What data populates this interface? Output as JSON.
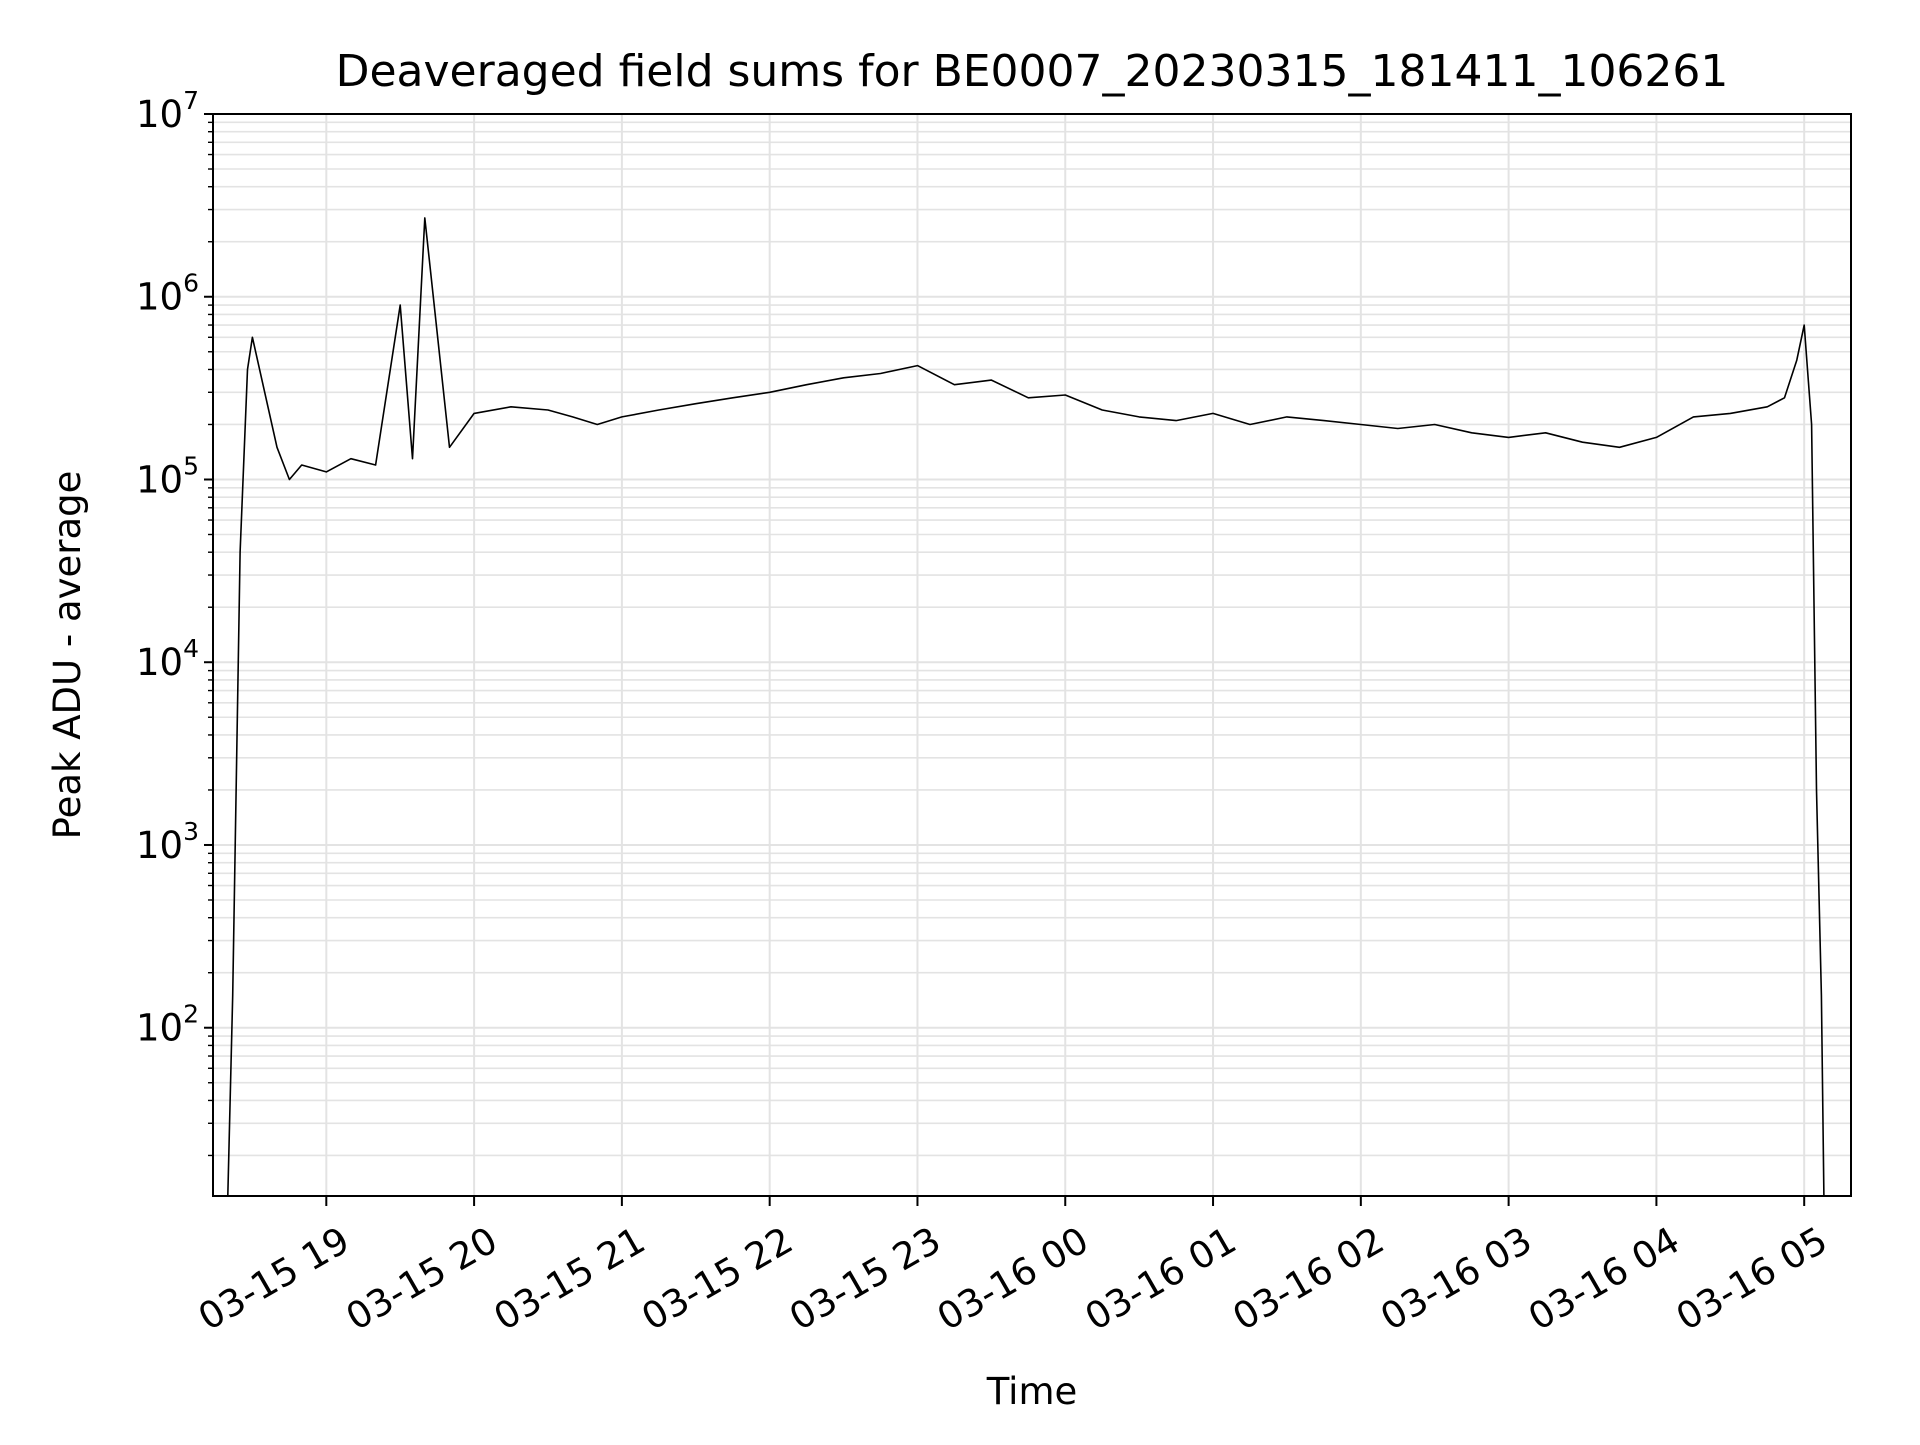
{
  "chart_data": {
    "type": "line",
    "title": "Deaveraged field sums for BE0007_20230315_181411_106261",
    "xlabel": "Time",
    "ylabel": "Peak ADU - average",
    "yscale": "log",
    "ylim": [
      12,
      10000000
    ],
    "xlim": [
      "2023-03-15 18:14",
      "2023-03-16 05:19"
    ],
    "grid": true,
    "line_color": "#000000",
    "grid_color": "#e3e3e3",
    "x_ticks": [
      "2023-03-15 19:00",
      "2023-03-15 20:00",
      "2023-03-15 21:00",
      "2023-03-15 22:00",
      "2023-03-15 23:00",
      "2023-03-16 00:00",
      "2023-03-16 01:00",
      "2023-03-16 02:00",
      "2023-03-16 03:00",
      "2023-03-16 04:00",
      "2023-03-16 05:00"
    ],
    "x_tick_labels": [
      "03-15 19",
      "03-15 20",
      "03-15 21",
      "03-15 22",
      "03-15 23",
      "03-16 00",
      "03-16 01",
      "03-16 02",
      "03-16 03",
      "03-16 04",
      "03-16 05"
    ],
    "y_ticks": [
      100,
      1000,
      10000,
      100000,
      1000000,
      10000000
    ],
    "y_tick_labels": [
      {
        "base": "10",
        "exp": "2"
      },
      {
        "base": "10",
        "exp": "3"
      },
      {
        "base": "10",
        "exp": "4"
      },
      {
        "base": "10",
        "exp": "5"
      },
      {
        "base": "10",
        "exp": "6"
      },
      {
        "base": "10",
        "exp": "7"
      }
    ],
    "series": [
      {
        "x": [
          "2023-03-15 18:20",
          "2023-03-15 18:22",
          "2023-03-15 18:25",
          "2023-03-15 18:28",
          "2023-03-15 18:30",
          "2023-03-15 18:35",
          "2023-03-15 18:40",
          "2023-03-15 18:45",
          "2023-03-15 18:50",
          "2023-03-15 19:00",
          "2023-03-15 19:10",
          "2023-03-15 19:20",
          "2023-03-15 19:30",
          "2023-03-15 19:35",
          "2023-03-15 19:40",
          "2023-03-15 19:50",
          "2023-03-15 20:00",
          "2023-03-15 20:15",
          "2023-03-15 20:30",
          "2023-03-15 20:40",
          "2023-03-15 20:50",
          "2023-03-15 21:00",
          "2023-03-15 21:15",
          "2023-03-15 21:30",
          "2023-03-15 21:45",
          "2023-03-15 22:00",
          "2023-03-15 22:15",
          "2023-03-15 22:30",
          "2023-03-15 22:45",
          "2023-03-15 23:00",
          "2023-03-15 23:15",
          "2023-03-15 23:30",
          "2023-03-15 23:45",
          "2023-03-16 00:00",
          "2023-03-16 00:15",
          "2023-03-16 00:30",
          "2023-03-16 00:45",
          "2023-03-16 01:00",
          "2023-03-16 01:15",
          "2023-03-16 01:30",
          "2023-03-16 01:45",
          "2023-03-16 02:00",
          "2023-03-16 02:15",
          "2023-03-16 02:30",
          "2023-03-16 02:45",
          "2023-03-16 03:00",
          "2023-03-16 03:15",
          "2023-03-16 03:30",
          "2023-03-16 03:45",
          "2023-03-16 04:00",
          "2023-03-16 04:15",
          "2023-03-16 04:30",
          "2023-03-16 04:45",
          "2023-03-16 04:52",
          "2023-03-16 04:57",
          "2023-03-16 05:00",
          "2023-03-16 05:03",
          "2023-03-16 05:05",
          "2023-03-16 05:07",
          "2023-03-16 05:08"
        ],
        "y": [
          12,
          150,
          40000,
          400000,
          600000,
          300000,
          150000,
          100000,
          120000,
          110000,
          130000,
          120000,
          900000,
          130000,
          2700000,
          150000,
          230000,
          250000,
          240000,
          220000,
          200000,
          220000,
          240000,
          260000,
          280000,
          300000,
          330000,
          360000,
          380000,
          420000,
          330000,
          350000,
          280000,
          290000,
          240000,
          220000,
          210000,
          230000,
          200000,
          220000,
          210000,
          200000,
          190000,
          200000,
          180000,
          170000,
          180000,
          160000,
          150000,
          170000,
          220000,
          230000,
          250000,
          280000,
          450000,
          700000,
          200000,
          2000,
          150,
          12
        ]
      }
    ]
  }
}
